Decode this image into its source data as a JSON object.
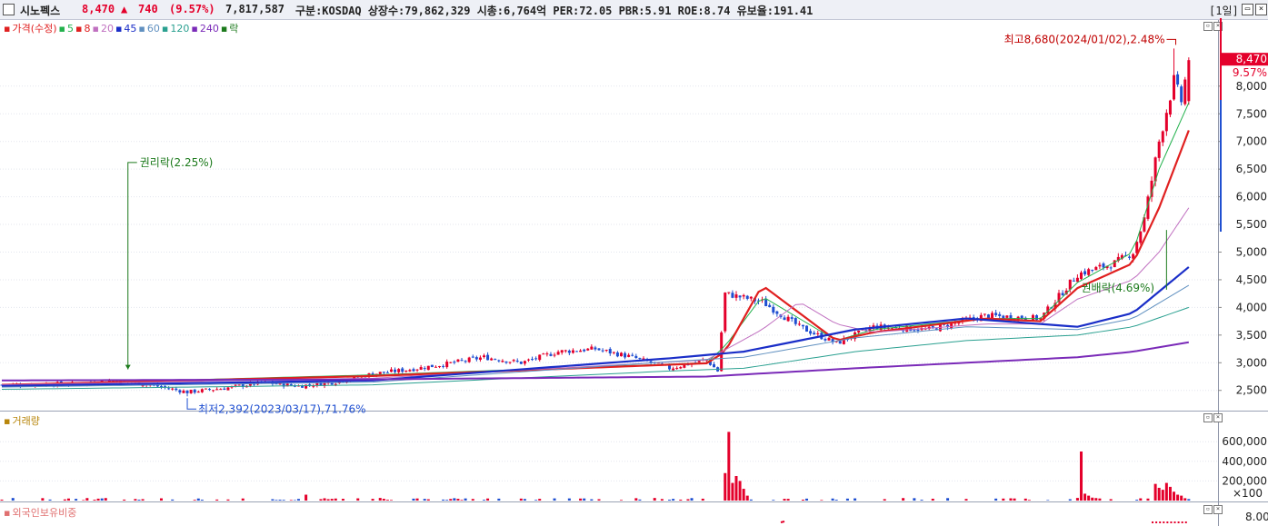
{
  "header": {
    "checkbox_icon": "checkbox-icon",
    "stock_name": "시노펙스",
    "price": "8,470",
    "change_arrow": "▲",
    "change": "740",
    "change_pct": "(9.57%)",
    "volume": "7,817,587",
    "info": "구분:KOSDAQ 상장수:79,862,329 시총:6,764억 PER:72.05 PBR:5.91 ROE:8.74 유보율:191.41",
    "period": "[1일]",
    "colors": {
      "up": "#e4002b",
      "down": "#1f4fd1",
      "text": "#222222"
    }
  },
  "price_pane": {
    "legend": [
      {
        "label": "가격(수정)",
        "color": "#e02020"
      },
      {
        "label": "5",
        "color": "#22b14c"
      },
      {
        "label": "8",
        "color": "#e02020"
      },
      {
        "label": "20",
        "color": "#c070c0"
      },
      {
        "label": "45",
        "color": "#1a2ec8"
      },
      {
        "label": "60",
        "color": "#6090c0"
      },
      {
        "label": "120",
        "color": "#2aa090"
      },
      {
        "label": "240",
        "color": "#7a2ab8"
      },
      {
        "label": "락",
        "color": "#1c7a1c"
      }
    ],
    "current_price_label": "8,470",
    "current_pct_label": "9.57%"
  },
  "volume_pane": {
    "legend": "거래량",
    "legend_color": "#b8860b"
  },
  "foreign_pane": {
    "legend": "외국인보유비중",
    "legend_color": "#e07070",
    "tick": "8.00"
  },
  "chart_data": [
    {
      "type": "candlestick",
      "title": "",
      "ylim": [
        2200,
        8900
      ],
      "yticks": [
        2500,
        3000,
        3500,
        4000,
        4500,
        5000,
        5500,
        6000,
        6500,
        7000,
        7500,
        8000
      ],
      "ytick_labels": [
        "2,500",
        "3,000",
        "3,500",
        "4,000",
        "4,500",
        "5,000",
        "5,500",
        "6,000",
        "6,500",
        "7,000",
        "7,500",
        "8,000"
      ],
      "periods": 240,
      "close_path": [
        [
          0,
          2600
        ],
        [
          20,
          2620
        ],
        [
          30,
          2680
        ],
        [
          40,
          2600
        ],
        [
          50,
          2470
        ],
        [
          60,
          2540
        ],
        [
          70,
          2640
        ],
        [
          80,
          2580
        ],
        [
          90,
          2650
        ],
        [
          100,
          2800
        ],
        [
          110,
          2880
        ],
        [
          120,
          2980
        ],
        [
          130,
          3100
        ],
        [
          140,
          3000
        ],
        [
          150,
          3200
        ],
        [
          160,
          3250
        ],
        [
          170,
          3100
        ],
        [
          180,
          2900
        ],
        [
          190,
          3050
        ],
        [
          193,
          2850
        ],
        [
          195,
          4250
        ],
        [
          205,
          4100
        ],
        [
          215,
          3650
        ],
        [
          225,
          3350
        ],
        [
          235,
          3650
        ],
        [
          250,
          3600
        ],
        [
          265,
          3850
        ],
        [
          280,
          3800
        ],
        [
          290,
          4600
        ],
        [
          300,
          4800
        ],
        [
          305,
          5000
        ],
        [
          308,
          5600
        ],
        [
          312,
          7000
        ],
        [
          316,
          8100
        ],
        [
          318,
          7730
        ],
        [
          320,
          8470
        ]
      ],
      "ma_paths": {
        "5": [
          [
            0,
            2600
          ],
          [
            100,
            2780
          ],
          [
            190,
            3000
          ],
          [
            195,
            3300
          ],
          [
            205,
            4200
          ],
          [
            225,
            3400
          ],
          [
            235,
            3600
          ],
          [
            265,
            3800
          ],
          [
            280,
            3800
          ],
          [
            290,
            4450
          ],
          [
            305,
            5000
          ],
          [
            312,
            6500
          ],
          [
            320,
            7700
          ]
        ],
        "8": [
          [
            0,
            2600
          ],
          [
            100,
            2760
          ],
          [
            190,
            2990
          ],
          [
            195,
            3200
          ],
          [
            205,
            4400
          ],
          [
            225,
            3400
          ],
          [
            235,
            3550
          ],
          [
            265,
            3800
          ],
          [
            280,
            3750
          ],
          [
            290,
            4350
          ],
          [
            305,
            4800
          ],
          [
            312,
            5800
          ],
          [
            320,
            7200
          ]
        ],
        "20": [
          [
            0,
            2600
          ],
          [
            100,
            2720
          ],
          [
            190,
            3050
          ],
          [
            205,
            3600
          ],
          [
            215,
            4100
          ],
          [
            225,
            3700
          ],
          [
            235,
            3550
          ],
          [
            265,
            3700
          ],
          [
            280,
            3700
          ],
          [
            290,
            4150
          ],
          [
            305,
            4500
          ],
          [
            312,
            5000
          ],
          [
            320,
            5800
          ]
        ],
        "45": [
          [
            0,
            2580
          ],
          [
            100,
            2680
          ],
          [
            180,
            3080
          ],
          [
            200,
            3200
          ],
          [
            230,
            3600
          ],
          [
            260,
            3800
          ],
          [
            290,
            3650
          ],
          [
            305,
            3900
          ],
          [
            320,
            4730
          ]
        ],
        "60": [
          [
            0,
            2560
          ],
          [
            100,
            2650
          ],
          [
            180,
            3020
          ],
          [
            200,
            3100
          ],
          [
            230,
            3450
          ],
          [
            260,
            3650
          ],
          [
            290,
            3600
          ],
          [
            305,
            3800
          ],
          [
            320,
            4400
          ]
        ],
        "120": [
          [
            0,
            2520
          ],
          [
            100,
            2600
          ],
          [
            180,
            2850
          ],
          [
            200,
            2900
          ],
          [
            230,
            3200
          ],
          [
            260,
            3400
          ],
          [
            290,
            3500
          ],
          [
            305,
            3650
          ],
          [
            320,
            4000
          ]
        ],
        "240": [
          [
            0,
            2680
          ],
          [
            100,
            2700
          ],
          [
            190,
            2750
          ],
          [
            230,
            2900
          ],
          [
            260,
            3000
          ],
          [
            290,
            3100
          ],
          [
            305,
            3200
          ],
          [
            320,
            3370
          ]
        ]
      },
      "annotations": [
        {
          "text": "권리락(2.25%)",
          "x_period": 34,
          "price": 2880
        },
        {
          "text": "최저2,392(2023/03/17),71.76%",
          "x_period": 50,
          "price": 2392
        },
        {
          "text": "최고8,680(2024/01/02),2.48%",
          "x_period": 316,
          "price": 8680
        },
        {
          "text": "권배락(4.69%)",
          "x_period": 291,
          "price": 4350
        }
      ],
      "high": 8680,
      "low": 2392,
      "last_close": 8470
    },
    {
      "type": "bar",
      "title": "",
      "ylabel": "거래량",
      "ylim": [
        0,
        750000
      ],
      "yticks": [
        200000,
        400000,
        600000
      ],
      "ytick_labels": [
        "200,000",
        "400,000",
        "600,000"
      ],
      "unit_label": "×100",
      "spikes": [
        [
          82,
          60000
        ],
        [
          195,
          280000
        ],
        [
          196,
          700000
        ],
        [
          197,
          180000
        ],
        [
          198,
          250000
        ],
        [
          199,
          200000
        ],
        [
          200,
          120000
        ],
        [
          201,
          50000
        ],
        [
          291,
          500000
        ],
        [
          292,
          70000
        ],
        [
          293,
          50000
        ],
        [
          294,
          30000
        ],
        [
          311,
          170000
        ],
        [
          312,
          130000
        ],
        [
          313,
          110000
        ],
        [
          314,
          180000
        ],
        [
          315,
          140000
        ],
        [
          316,
          90000
        ],
        [
          317,
          60000
        ],
        [
          318,
          50000
        ]
      ]
    }
  ]
}
